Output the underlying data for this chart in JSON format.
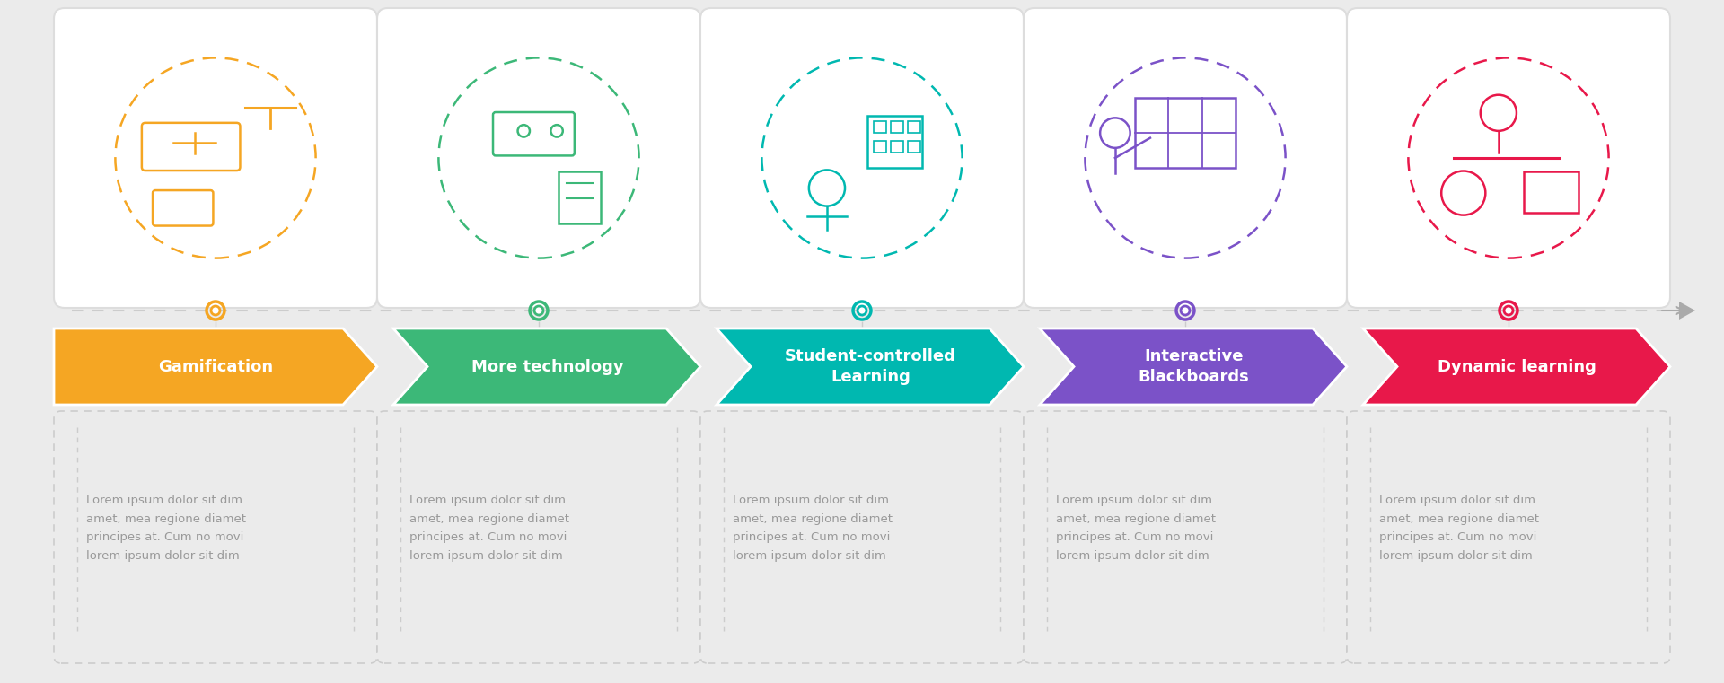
{
  "background_color": "#ebebeb",
  "steps": [
    {
      "title": "Gamification",
      "color": "#F5A623",
      "multiline": false
    },
    {
      "title": "More technology",
      "color": "#3CB878",
      "multiline": false
    },
    {
      "title": "Student-controlled\nLearning",
      "color": "#00B8B0",
      "multiline": true
    },
    {
      "title": "Interactive\nBlackboards",
      "color": "#7B52C8",
      "multiline": true
    },
    {
      "title": "Dynamic learning",
      "color": "#E8184A",
      "multiline": false
    }
  ],
  "body_text": "Lorem ipsum dolor sit dim\namet, mea regione diamet\nprincipes at. Cum no movi\nlorem ipsum dolor sit dim",
  "timeline_color": "#cccccc",
  "dot_inner_color": "#ffffff",
  "card_edge_color": "#dddddd",
  "text_color": "#999999",
  "dashed_box_color": "#cccccc"
}
